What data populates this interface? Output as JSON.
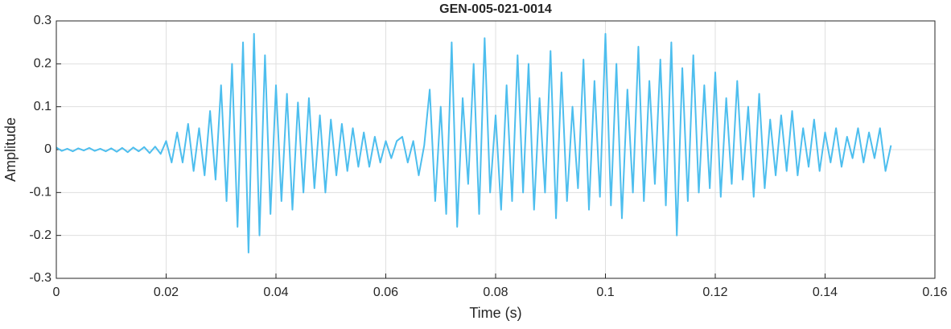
{
  "chart_data": {
    "type": "line",
    "title": "GEN-005-021-0014",
    "xlabel": "Time (s)",
    "ylabel": "Amplitude",
    "x": [
      0,
      0.001,
      0.002,
      0.003,
      0.004,
      0.005,
      0.006,
      0.007,
      0.008,
      0.009,
      0.01,
      0.011,
      0.012,
      0.013,
      0.014,
      0.015,
      0.016,
      0.017,
      0.018,
      0.019,
      0.02,
      0.021,
      0.022,
      0.023,
      0.024,
      0.025,
      0.026,
      0.027,
      0.028,
      0.029,
      0.03,
      0.031,
      0.032,
      0.033,
      0.034,
      0.035,
      0.036,
      0.037,
      0.038,
      0.039,
      0.04,
      0.041,
      0.042,
      0.043,
      0.044,
      0.045,
      0.046,
      0.047,
      0.048,
      0.049,
      0.05,
      0.051,
      0.052,
      0.053,
      0.054,
      0.055,
      0.056,
      0.057,
      0.058,
      0.059,
      0.06,
      0.061,
      0.062,
      0.063,
      0.064,
      0.065,
      0.066,
      0.067,
      0.068,
      0.069,
      0.07,
      0.071,
      0.072,
      0.073,
      0.074,
      0.075,
      0.076,
      0.077,
      0.078,
      0.079,
      0.08,
      0.081,
      0.082,
      0.083,
      0.084,
      0.085,
      0.086,
      0.087,
      0.088,
      0.089,
      0.09,
      0.091,
      0.092,
      0.093,
      0.094,
      0.095,
      0.096,
      0.097,
      0.098,
      0.099,
      0.1,
      0.101,
      0.102,
      0.103,
      0.104,
      0.105,
      0.106,
      0.107,
      0.108,
      0.109,
      0.11,
      0.111,
      0.112,
      0.113,
      0.114,
      0.115,
      0.116,
      0.117,
      0.118,
      0.119,
      0.12,
      0.121,
      0.122,
      0.123,
      0.124,
      0.125,
      0.126,
      0.127,
      0.128,
      0.129,
      0.13,
      0.131,
      0.132,
      0.133,
      0.134,
      0.135,
      0.136,
      0.137,
      0.138,
      0.139,
      0.14,
      0.141,
      0.142,
      0.143,
      0.144,
      0.145,
      0.146,
      0.147,
      0.148,
      0.149,
      0.15,
      0.151,
      0.152
    ],
    "series": [
      {
        "color": "#4dbeee",
        "values": [
          0.005,
          -0.003,
          0.002,
          -0.004,
          0.003,
          -0.002,
          0.004,
          -0.003,
          0.002,
          -0.004,
          0.003,
          -0.005,
          0.004,
          -0.006,
          0.005,
          -0.004,
          0.006,
          -0.008,
          0.007,
          -0.01,
          0.02,
          -0.03,
          0.04,
          -0.03,
          0.06,
          -0.05,
          0.05,
          -0.06,
          0.09,
          -0.07,
          0.15,
          -0.12,
          0.2,
          -0.18,
          0.25,
          -0.24,
          0.27,
          -0.2,
          0.22,
          -0.15,
          0.15,
          -0.12,
          0.13,
          -0.14,
          0.11,
          -0.1,
          0.12,
          -0.09,
          0.08,
          -0.1,
          0.07,
          -0.06,
          0.06,
          -0.05,
          0.05,
          -0.04,
          0.04,
          -0.04,
          0.03,
          -0.03,
          0.02,
          -0.02,
          0.02,
          0.03,
          -0.03,
          0.02,
          -0.06,
          0.01,
          0.14,
          -0.12,
          0.1,
          -0.15,
          0.25,
          -0.18,
          0.12,
          -0.08,
          0.2,
          -0.15,
          0.26,
          -0.1,
          0.08,
          -0.14,
          0.15,
          -0.12,
          0.22,
          -0.1,
          0.2,
          -0.14,
          0.12,
          -0.1,
          0.23,
          -0.16,
          0.18,
          -0.12,
          0.1,
          -0.09,
          0.21,
          -0.14,
          0.16,
          -0.11,
          0.27,
          -0.13,
          0.2,
          -0.16,
          0.14,
          -0.1,
          0.24,
          -0.12,
          0.16,
          -0.08,
          0.21,
          -0.13,
          0.25,
          -0.2,
          0.19,
          -0.12,
          0.22,
          -0.1,
          0.15,
          -0.09,
          0.18,
          -0.11,
          0.12,
          -0.08,
          0.16,
          -0.07,
          0.1,
          -0.11,
          0.13,
          -0.09,
          0.07,
          -0.06,
          0.08,
          -0.05,
          0.09,
          -0.06,
          0.05,
          -0.04,
          0.07,
          -0.05,
          0.04,
          -0.03,
          0.05,
          -0.04,
          0.03,
          -0.02,
          0.05,
          -0.03,
          0.04,
          -0.02,
          0.05,
          -0.05,
          0.01
        ]
      }
    ],
    "xlim": [
      0,
      0.16
    ],
    "xticks": [
      0,
      0.02,
      0.04,
      0.06,
      0.08,
      0.1,
      0.12,
      0.14,
      0.16
    ],
    "ylim": [
      -0.3,
      0.3
    ],
    "yticks": [
      -0.3,
      -0.2,
      -0.1,
      0,
      0.1,
      0.2,
      0.3
    ],
    "grid": true
  }
}
